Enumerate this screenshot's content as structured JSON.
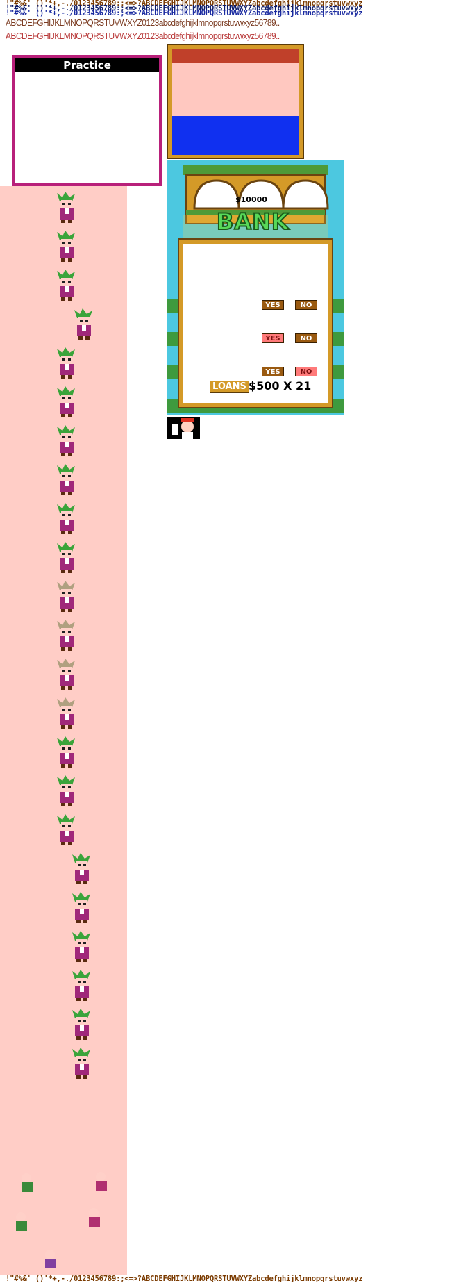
{
  "font_rows": [
    {
      "text": "!\"#%&' ()'*+,-./0123456789:;<=>?ABCDEFGHIJKLMNOPQRSTUVWXYZabcdefghijklmnopqrstuvwxyz",
      "color": "#7a3a00"
    },
    {
      "text": "!\"#%&' ()'*+,-./0123456789:;<=>?ABCDEFGHIJKLMNOPQRSTUVWXYZabcdefghijklmnopqrstuvwxyz",
      "color": "#0a1a6a"
    },
    {
      "text": "!\"#%&' ()'*+,-./0123456789:;<=>?ABCDEFGHIJKLMNOPQRSTUVWXYZabcdefghijklmnopqrstuvwxyz",
      "color": "#1a2aa0"
    }
  ],
  "narrow_rows": [
    {
      "text": "ABCDEFGHIJKLMNOPQRSTUVWXYZ0123abcdefghijklmnopqrstuvwxyz56789..",
      "color": "#7a3a20"
    },
    {
      "text": "ABCDEFGHIJKLMNOPQRSTUVWXYZ0123abcdefghijklmnopqrstuvwxyz56789..",
      "color": "#b83838"
    }
  ],
  "practice": {
    "title": "Practice",
    "border_color": "#b8207a"
  },
  "flag": {
    "colors": [
      "#c0402a",
      "#ffc8c0",
      "#1030f0"
    ]
  },
  "bank": {
    "amount": "$10000",
    "sign": "BANK",
    "buttons": [
      {
        "yes": "YES",
        "no": "NO",
        "selected": "none"
      },
      {
        "yes": "YES",
        "no": "NO",
        "selected": "yes"
      },
      {
        "yes": "YES",
        "no": "NO",
        "selected": "no"
      }
    ],
    "loans_label": "LOANS",
    "loans_value": "$500 X 21"
  },
  "bottom_row": {
    "text": "!\"#%&' ()'*+,-./0123456789:;<=>?ABCDEFGHIJKLMNOPQRSTUVWXYZabcdefghijklmnopqrstuvwxyz",
    "color": "#7a3a00"
  },
  "colors": {
    "pink": "#ffcdc6",
    "sky": "#4cc8e0",
    "gold": "#d49a28",
    "magenta": "#b8207a"
  }
}
